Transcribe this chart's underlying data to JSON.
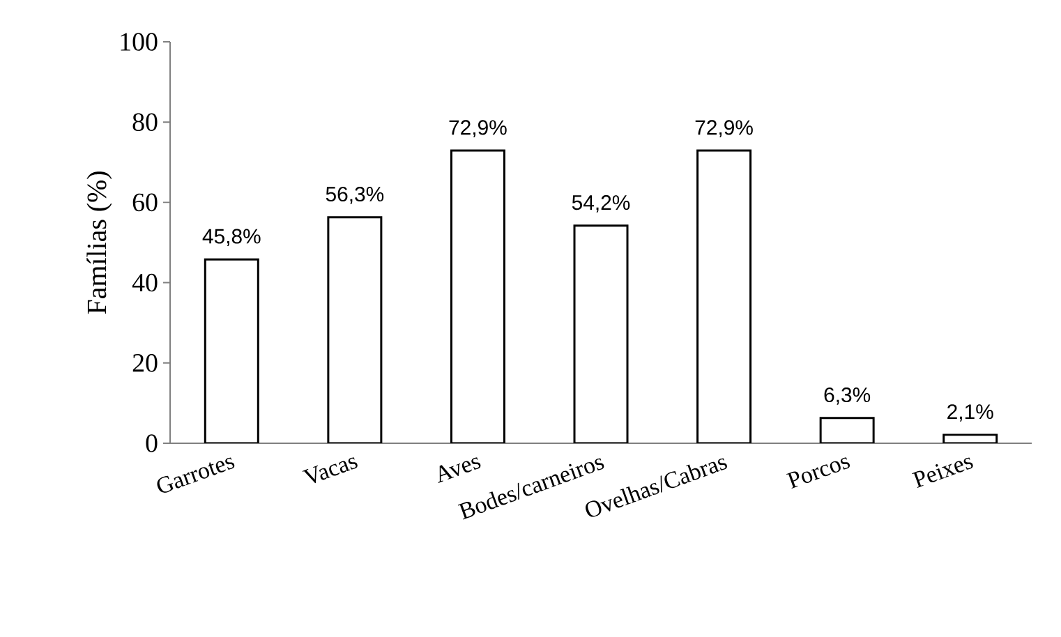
{
  "chart_data": {
    "type": "bar",
    "ylabel": "Famílias (%)",
    "categories": [
      "Garrotes",
      "Vacas",
      "Aves",
      "Bodes/carneiros",
      "Ovelhas/Cabras",
      "Porcos",
      "Peixes"
    ],
    "values": [
      45.8,
      56.3,
      72.9,
      54.2,
      72.9,
      6.3,
      2.1
    ],
    "value_labels": [
      "45,8%",
      "56,3%",
      "72,9%",
      "54,2%",
      "72,9%",
      "6,3%",
      "2,1%"
    ],
    "color": "#ffffff",
    "ylim": [
      0,
      100
    ],
    "yticks": [
      0,
      20,
      40,
      60,
      80,
      100
    ],
    "grid": false
  }
}
